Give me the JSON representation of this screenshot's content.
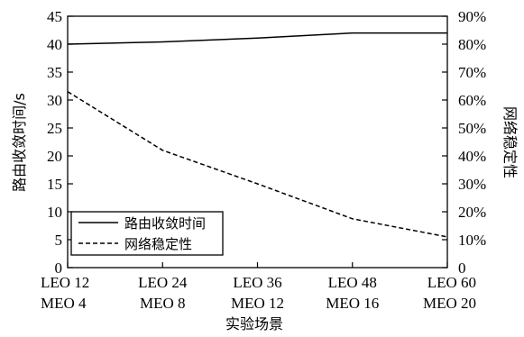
{
  "chart_data": {
    "type": "line",
    "categories": [
      [
        "LEO 12",
        "MEO 4"
      ],
      [
        "LEO 24",
        "MEO 8"
      ],
      [
        "LEO 36",
        "MEO 12"
      ],
      [
        "LEO 48",
        "MEO 16"
      ],
      [
        "LEO 60",
        "MEO 20"
      ]
    ],
    "xlabel": "实验场景",
    "ylabel_left": "路由收敛时间/s",
    "ylabel_right": "网络稳定性",
    "ylim_left": [
      0,
      45
    ],
    "ylim_right": [
      0,
      90
    ],
    "yticks_left": [
      "0",
      "5",
      "10",
      "15",
      "20",
      "25",
      "30",
      "35",
      "40",
      "45"
    ],
    "yticks_right": [
      "0",
      "10%",
      "20%",
      "30%",
      "40%",
      "50%",
      "60%",
      "70%",
      "80%",
      "90%"
    ],
    "grid": false,
    "legend_position": "bottom-left",
    "series": [
      {
        "name": "路由收敛时间",
        "axis": "left",
        "style": "solid",
        "color": "#000000",
        "values": [
          40,
          40.4,
          41.1,
          42,
          42
        ]
      },
      {
        "name": "网络稳定性",
        "axis": "right",
        "style": "dashed",
        "color": "#000000",
        "values": [
          63,
          42,
          30,
          17.5,
          11
        ]
      }
    ]
  }
}
